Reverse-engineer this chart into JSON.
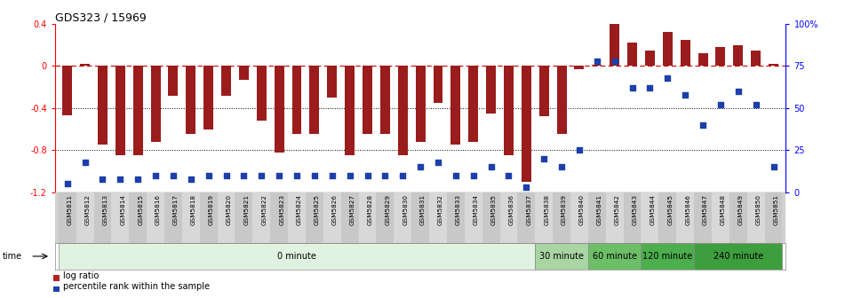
{
  "title": "GDS323 / 15969",
  "samples": [
    "GSM5811",
    "GSM5812",
    "GSM5813",
    "GSM5814",
    "GSM5815",
    "GSM5816",
    "GSM5817",
    "GSM5818",
    "GSM5819",
    "GSM5820",
    "GSM5821",
    "GSM5822",
    "GSM5823",
    "GSM5824",
    "GSM5825",
    "GSM5826",
    "GSM5827",
    "GSM5828",
    "GSM5829",
    "GSM5830",
    "GSM5831",
    "GSM5832",
    "GSM5833",
    "GSM5834",
    "GSM5835",
    "GSM5836",
    "GSM5837",
    "GSM5838",
    "GSM5839",
    "GSM5840",
    "GSM5841",
    "GSM5842",
    "GSM5843",
    "GSM5844",
    "GSM5845",
    "GSM5846",
    "GSM5847",
    "GSM5848",
    "GSM5849",
    "GSM5850",
    "GSM5851"
  ],
  "log_ratio": [
    -0.47,
    0.02,
    -0.75,
    -0.85,
    -0.85,
    -0.72,
    -0.28,
    -0.65,
    -0.6,
    -0.28,
    -0.13,
    -0.52,
    -0.82,
    -0.65,
    -0.65,
    -0.3,
    -0.85,
    -0.65,
    -0.65,
    -0.85,
    -0.72,
    -0.35,
    -0.75,
    -0.72,
    -0.45,
    -0.85,
    -1.1,
    -0.48,
    -0.65,
    -0.03,
    0.01,
    0.4,
    0.22,
    0.15,
    0.32,
    0.25,
    0.12,
    0.18,
    0.2,
    0.15,
    0.02
  ],
  "percentile": [
    5,
    18,
    8,
    8,
    8,
    10,
    10,
    8,
    10,
    10,
    10,
    10,
    10,
    10,
    10,
    10,
    10,
    10,
    10,
    10,
    15,
    18,
    10,
    10,
    15,
    10,
    3,
    20,
    15,
    25,
    78,
    78,
    62,
    62,
    68,
    58,
    40,
    52,
    60,
    52,
    15
  ],
  "time_groups": [
    {
      "label": "0 minute",
      "start": 0,
      "end": 27,
      "color": "#e0f2e0"
    },
    {
      "label": "30 minute",
      "start": 27,
      "end": 30,
      "color": "#a8d5a2"
    },
    {
      "label": "60 minute",
      "start": 30,
      "end": 33,
      "color": "#6dbf67"
    },
    {
      "label": "120 minute",
      "start": 33,
      "end": 36,
      "color": "#4cae4c"
    },
    {
      "label": "240 minute",
      "start": 36,
      "end": 41,
      "color": "#3d9e3d"
    }
  ],
  "bar_color": "#9b1c1c",
  "dot_color": "#1c3faa",
  "ylim_left": [
    -1.2,
    0.4
  ],
  "ylim_right": [
    0,
    100
  ],
  "yticks_left": [
    -1.2,
    -0.8,
    -0.4,
    0.0,
    0.4
  ],
  "ytick_labels_left": [
    "-1.2",
    "-0.8",
    "-0.4",
    "0",
    "0.4"
  ],
  "yticks_right": [
    0,
    25,
    50,
    75,
    100
  ],
  "ytick_labels_right": [
    "0",
    "25",
    "50",
    "75",
    "100%"
  ],
  "hlines": [
    0.0,
    -0.4,
    -0.8
  ],
  "hline_styles": [
    "dashed",
    "dotted",
    "dotted"
  ],
  "hline_colors": [
    "#cc0000",
    "black",
    "black"
  ],
  "legend_bar_color": "#b22222",
  "legend_dot_color": "#1c3faa"
}
